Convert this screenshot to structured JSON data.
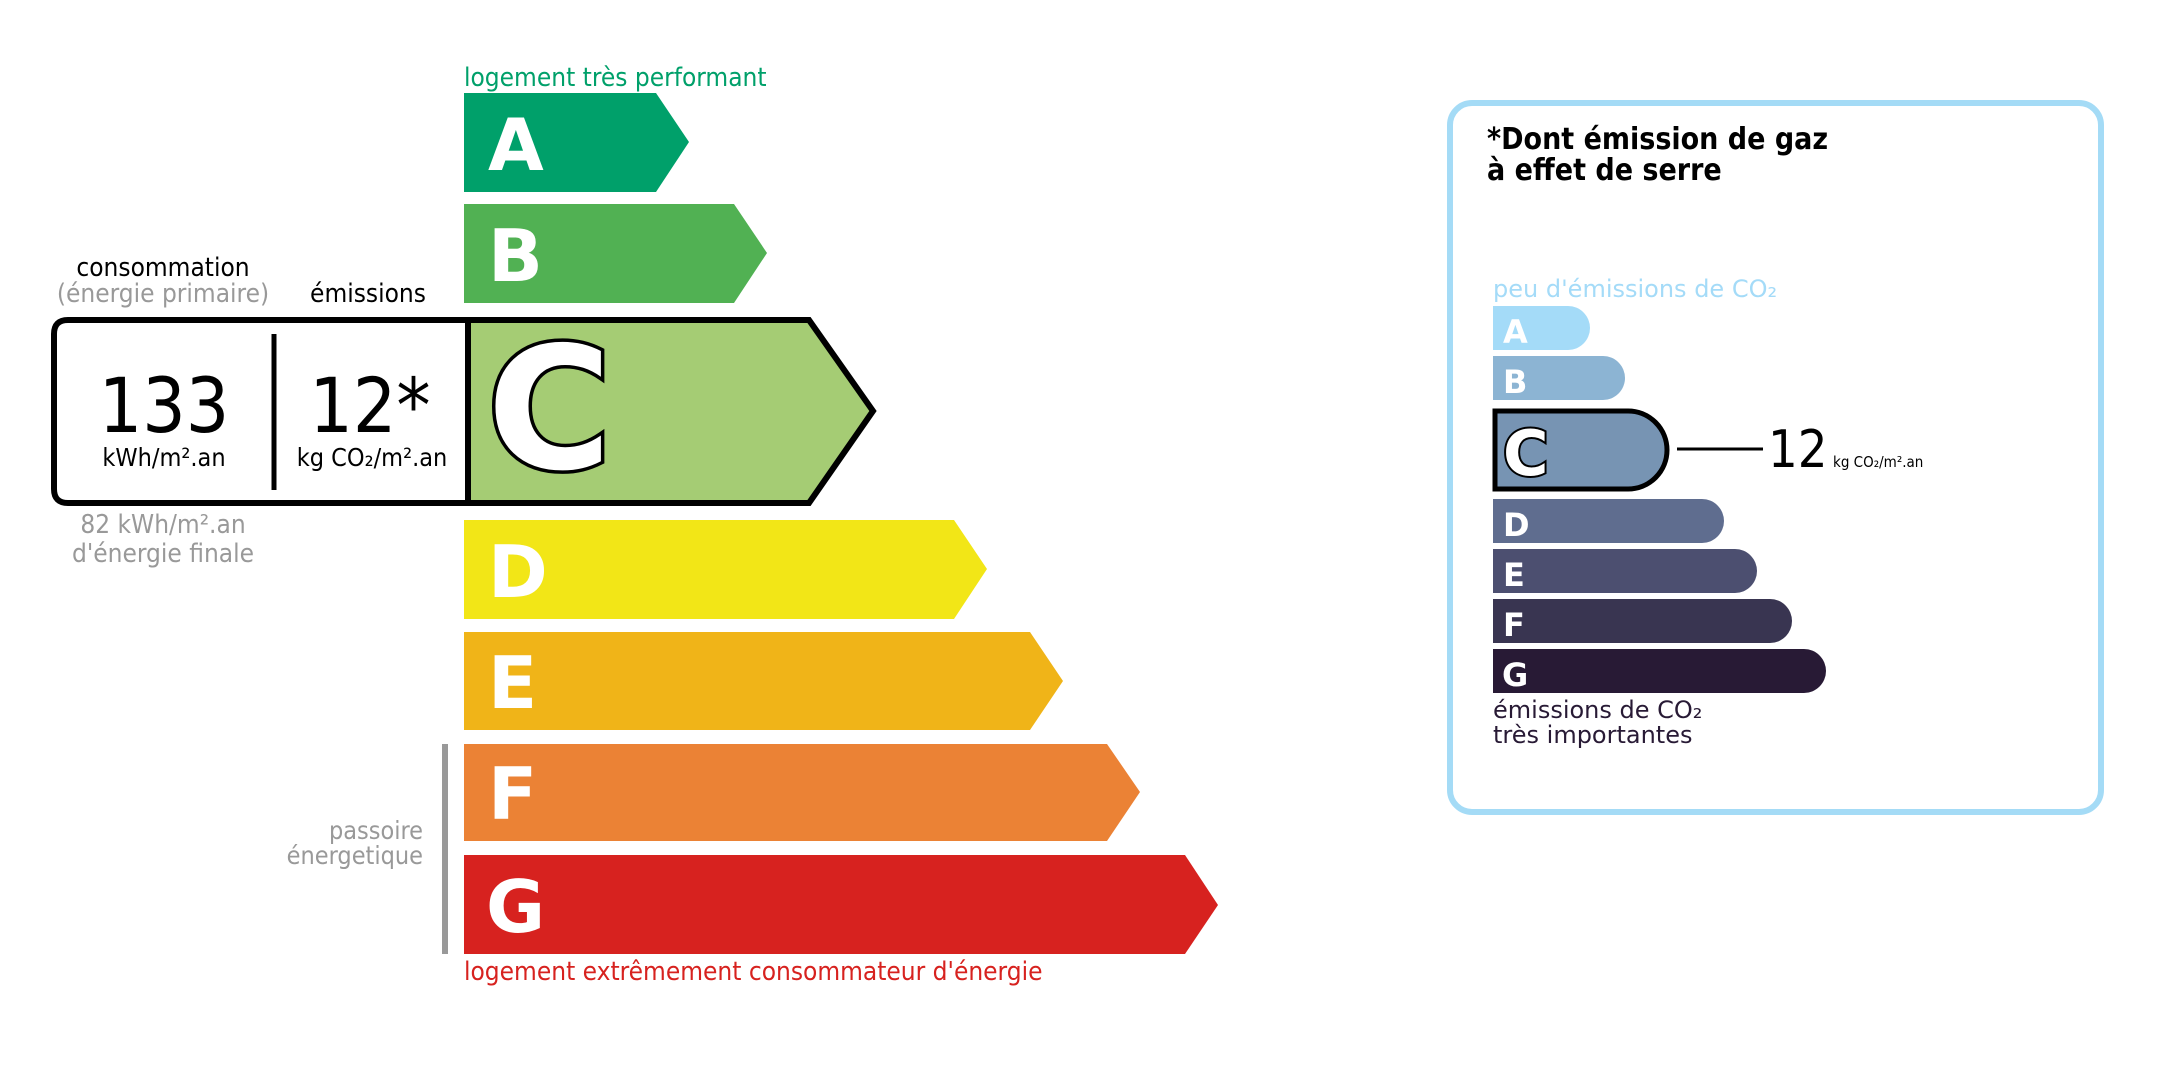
{
  "energy_label": {
    "top_label": "logement très performant",
    "bottom_label": "logement extrêmement consommateur d'énergie",
    "classes": [
      {
        "letter": "A",
        "color": "#00a06a"
      },
      {
        "letter": "B",
        "color": "#51b153"
      },
      {
        "letter": "C",
        "color": "#a5cc74"
      },
      {
        "letter": "D",
        "color": "#f2e617"
      },
      {
        "letter": "E",
        "color": "#f0b418"
      },
      {
        "letter": "F",
        "color": "#eb8235"
      },
      {
        "letter": "G",
        "color": "#d7221f"
      }
    ],
    "active_class": "C",
    "consumption_heading": "consommation",
    "consumption_subheading": "(énergie primaire)",
    "emissions_heading": "émissions",
    "consumption_value": "133",
    "consumption_unit": "kWh/m².an",
    "emissions_value": "12*",
    "emissions_unit": "kg CO₂/m².an",
    "final_energy_value": "82 kWh/m².an",
    "final_energy_label": "d'énergie finale",
    "passoire_line1": "passoire",
    "passoire_line2": "énergetique"
  },
  "ghg_panel": {
    "title_line1": "*Dont émission de gaz",
    "title_line2": "à effet de serre",
    "top_label": "peu d'émissions de CO₂",
    "bottom_label_line1": "émissions de CO₂",
    "bottom_label_line2": "très importantes",
    "classes": [
      {
        "letter": "A",
        "color": "#a4dbf8"
      },
      {
        "letter": "B",
        "color": "#8cb4d3"
      },
      {
        "letter": "C",
        "color": "#7794b3"
      },
      {
        "letter": "D",
        "color": "#5f6d8f"
      },
      {
        "letter": "E",
        "color": "#4c4f70"
      },
      {
        "letter": "F",
        "color": "#393551"
      },
      {
        "letter": "G",
        "color": "#281a35"
      }
    ],
    "active_class": "C",
    "value": "12",
    "unit": "kg CO₂/m².an",
    "border_color": "#a4dbf6"
  }
}
